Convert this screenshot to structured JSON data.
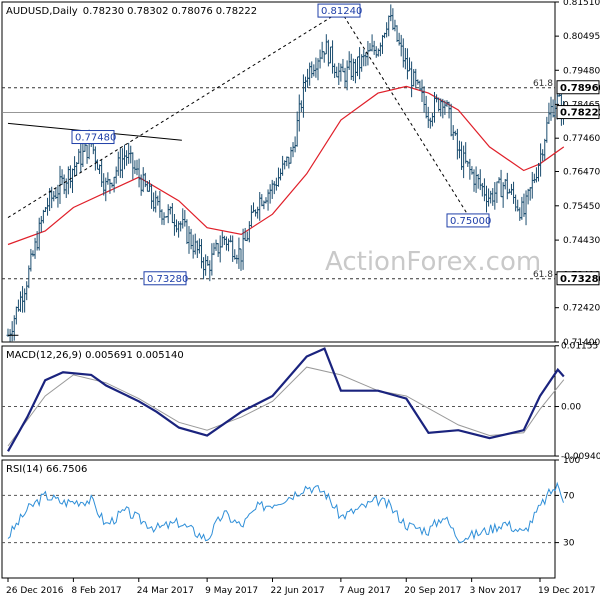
{
  "chart_data": [
    {
      "type": "ohlc",
      "title": "AUDUSD,Daily",
      "ohlc_header": [
        "0.78230",
        "0.78302",
        "0.78076",
        "0.78222"
      ],
      "watermark": "ActionForex.com",
      "ylim": [
        0.714,
        0.8151
      ],
      "y_ticks": [
        "0.81510",
        "0.80495",
        "0.79480",
        "0.78465",
        "0.77460",
        "0.76470",
        "0.75450",
        "0.74430",
        "0.73410",
        "0.72420",
        "0.71400"
      ],
      "x_ticks": [
        "26 Dec 2016",
        "8 Feb 2017",
        "24 Mar 2017",
        "9 May 2017",
        "22 Jun 2017",
        "7 Aug 2017",
        "20 Sep 2017",
        "3 Nov 2017",
        "19 Dec 2017"
      ],
      "current_price": "0.78222",
      "last_price": 0.78222,
      "fib_levels": [
        {
          "label": "61.8",
          "price": "0.78960",
          "value": 0.7896
        },
        {
          "label": "61.8",
          "price": "0.73280",
          "value": 0.7328
        }
      ],
      "annotations": [
        {
          "label": "0.81240",
          "value": 0.8124
        },
        {
          "label": "0.77480",
          "value": 0.7748
        },
        {
          "label": "0.73280",
          "value": 0.7328
        },
        {
          "label": "0.75000",
          "value": 0.75
        }
      ],
      "trend_lines": [
        {
          "from": [
            "26 Dec 2016",
            0.751
          ],
          "to": [
            "7 Aug 2017",
            0.8124
          ]
        },
        {
          "from": [
            "7 Aug 2017",
            0.8124
          ],
          "to": [
            "3 Nov 2017",
            0.75
          ]
        },
        {
          "from": [
            "26 Dec 2016",
            0.779
          ],
          "to": [
            "22 Apr 2017",
            0.774
          ]
        },
        {
          "from": [
            "26 Dec 2016",
            0.716
          ],
          "to": [
            "2 Jan 2017",
            0.716
          ]
        }
      ],
      "key_points": [
        {
          "date": "26 Dec 2016",
          "close": 0.716
        },
        {
          "date": "8 Jan 2017",
          "close": 0.733
        },
        {
          "date": "20 Jan 2017",
          "close": 0.754
        },
        {
          "date": "8 Feb 2017",
          "close": 0.766
        },
        {
          "date": "20 Feb 2017",
          "close": 0.773
        },
        {
          "date": "2 Mar 2017",
          "close": 0.76
        },
        {
          "date": "15 Mar 2017",
          "close": 0.77
        },
        {
          "date": "24 Mar 2017",
          "close": 0.763
        },
        {
          "date": "5 Apr 2017",
          "close": 0.754
        },
        {
          "date": "20 Apr 2017",
          "close": 0.75
        },
        {
          "date": "1 May 2017",
          "close": 0.742
        },
        {
          "date": "9 May 2017",
          "close": 0.736
        },
        {
          "date": "20 May 2017",
          "close": 0.745
        },
        {
          "date": "1 Jun 2017",
          "close": 0.74
        },
        {
          "date": "12 Jun 2017",
          "close": 0.756
        },
        {
          "date": "22 Jun 2017",
          "close": 0.76
        },
        {
          "date": "5 Jul 2017",
          "close": 0.77
        },
        {
          "date": "15 Jul 2017",
          "close": 0.794
        },
        {
          "date": "27 Jul 2017",
          "close": 0.802
        },
        {
          "date": "7 Aug 2017",
          "close": 0.793
        },
        {
          "date": "18 Aug 2017",
          "close": 0.796
        },
        {
          "date": "1 Sep 2017",
          "close": 0.802
        },
        {
          "date": "8 Sep 2017",
          "close": 0.811
        },
        {
          "date": "20 Sep 2017",
          "close": 0.796
        },
        {
          "date": "5 Oct 2017",
          "close": 0.782
        },
        {
          "date": "15 Oct 2017",
          "close": 0.787
        },
        {
          "date": "25 Oct 2017",
          "close": 0.77
        },
        {
          "date": "3 Nov 2017",
          "close": 0.764
        },
        {
          "date": "15 Nov 2017",
          "close": 0.757
        },
        {
          "date": "25 Nov 2017",
          "close": 0.761
        },
        {
          "date": "8 Dec 2017",
          "close": 0.752
        },
        {
          "date": "19 Dec 2017",
          "close": 0.769
        },
        {
          "date": "26 Dec 2017",
          "close": 0.783
        },
        {
          "date": "31 Dec 2017",
          "close": 0.786
        },
        {
          "date": "4 Jan 2018",
          "close": 0.7822
        }
      ],
      "moving_average": [
        {
          "date": "26 Dec 2016",
          "value": 0.743
        },
        {
          "date": "20 Jan 2017",
          "value": 0.747
        },
        {
          "date": "8 Feb 2017",
          "value": 0.754
        },
        {
          "date": "24 Mar 2017",
          "value": 0.763
        },
        {
          "date": "20 Apr 2017",
          "value": 0.756
        },
        {
          "date": "9 May 2017",
          "value": 0.748
        },
        {
          "date": "1 Jun 2017",
          "value": 0.746
        },
        {
          "date": "22 Jun 2017",
          "value": 0.752
        },
        {
          "date": "15 Jul 2017",
          "value": 0.764
        },
        {
          "date": "7 Aug 2017",
          "value": 0.78
        },
        {
          "date": "1 Sep 2017",
          "value": 0.788
        },
        {
          "date": "20 Sep 2017",
          "value": 0.79
        },
        {
          "date": "5 Oct 2017",
          "value": 0.788
        },
        {
          "date": "25 Oct 2017",
          "value": 0.783
        },
        {
          "date": "15 Nov 2017",
          "value": 0.772
        },
        {
          "date": "8 Dec 2017",
          "value": 0.765
        },
        {
          "date": "19 Dec 2017",
          "value": 0.767
        },
        {
          "date": "4 Jan 2018",
          "value": 0.772
        }
      ]
    },
    {
      "type": "line",
      "title": "MACD(12,26,9) 0.005691 0.005140",
      "ylim": [
        -0.0094,
        0.0115
      ],
      "y_ticks": [
        "0.01155",
        "0.00",
        "-0.009408"
      ],
      "series": [
        {
          "values": [
            {
              "date": "26 Dec 2016",
              "value": -0.0085
            },
            {
              "date": "8 Jan 2017",
              "value": -0.002
            },
            {
              "date": "20 Jan 2017",
              "value": 0.005
            },
            {
              "date": "1 Feb 2017",
              "value": 0.0065
            },
            {
              "date": "20 Feb 2017",
              "value": 0.006
            },
            {
              "date": "2 Mar 2017",
              "value": 0.004
            },
            {
              "date": "24 Mar 2017",
              "value": 0.001
            },
            {
              "date": "5 Apr 2017",
              "value": -0.001
            },
            {
              "date": "20 Apr 2017",
              "value": -0.004
            },
            {
              "date": "9 May 2017",
              "value": -0.0055
            },
            {
              "date": "1 Jun 2017",
              "value": -0.001
            },
            {
              "date": "22 Jun 2017",
              "value": 0.002
            },
            {
              "date": "15 Jul 2017",
              "value": 0.0095
            },
            {
              "date": "27 Jul 2017",
              "value": 0.011
            },
            {
              "date": "7 Aug 2017",
              "value": 0.003
            },
            {
              "date": "1 Sep 2017",
              "value": 0.003
            },
            {
              "date": "20 Sep 2017",
              "value": 0.0015
            },
            {
              "date": "5 Oct 2017",
              "value": -0.005
            },
            {
              "date": "25 Oct 2017",
              "value": -0.0045
            },
            {
              "date": "15 Nov 2017",
              "value": -0.006
            },
            {
              "date": "8 Dec 2017",
              "value": -0.0045
            },
            {
              "date": "19 Dec 2017",
              "value": 0.002
            },
            {
              "date": "31 Dec 2017",
              "value": 0.007
            },
            {
              "date": "4 Jan 2018",
              "value": 0.0057
            }
          ]
        },
        {
          "values": [
            {
              "date": "26 Dec 2016",
              "value": -0.0075
            },
            {
              "date": "20 Jan 2017",
              "value": 0.002
            },
            {
              "date": "8 Feb 2017",
              "value": 0.006
            },
            {
              "date": "2 Mar 2017",
              "value": 0.0045
            },
            {
              "date": "24 Mar 2017",
              "value": 0.0015
            },
            {
              "date": "20 Apr 2017",
              "value": -0.003
            },
            {
              "date": "9 May 2017",
              "value": -0.0045
            },
            {
              "date": "1 Jun 2017",
              "value": -0.002
            },
            {
              "date": "22 Jun 2017",
              "value": 0.001
            },
            {
              "date": "15 Jul 2017",
              "value": 0.0075
            },
            {
              "date": "7 Aug 2017",
              "value": 0.006
            },
            {
              "date": "1 Sep 2017",
              "value": 0.003
            },
            {
              "date": "20 Sep 2017",
              "value": 0.002
            },
            {
              "date": "25 Oct 2017",
              "value": -0.0035
            },
            {
              "date": "15 Nov 2017",
              "value": -0.0055
            },
            {
              "date": "8 Dec 2017",
              "value": -0.005
            },
            {
              "date": "19 Dec 2017",
              "value": -0.0005
            },
            {
              "date": "4 Jan 2018",
              "value": 0.0051
            }
          ]
        }
      ]
    },
    {
      "type": "line",
      "title": "RSI(14) 66.7506",
      "ylim": [
        0,
        100
      ],
      "y_ticks": [
        "100",
        "70",
        "30",
        "0"
      ],
      "reference_levels": [
        70,
        30
      ],
      "series": [
        {
          "values": [
            {
              "date": "26 Dec 2016",
              "value": 35
            },
            {
              "date": "8 Jan 2017",
              "value": 58
            },
            {
              "date": "20 Jan 2017",
              "value": 70
            },
            {
              "date": "1 Feb 2017",
              "value": 64
            },
            {
              "date": "20 Feb 2017",
              "value": 66
            },
            {
              "date": "2 Mar 2017",
              "value": 45
            },
            {
              "date": "15 Mar 2017",
              "value": 57
            },
            {
              "date": "24 Mar 2017",
              "value": 50
            },
            {
              "date": "5 Apr 2017",
              "value": 42
            },
            {
              "date": "20 Apr 2017",
              "value": 47
            },
            {
              "date": "9 May 2017",
              "value": 33
            },
            {
              "date": "20 May 2017",
              "value": 55
            },
            {
              "date": "1 Jun 2017",
              "value": 44
            },
            {
              "date": "12 Jun 2017",
              "value": 60
            },
            {
              "date": "22 Jun 2017",
              "value": 63
            },
            {
              "date": "5 Jul 2017",
              "value": 70
            },
            {
              "date": "15 Jul 2017",
              "value": 78
            },
            {
              "date": "27 Jul 2017",
              "value": 73
            },
            {
              "date": "7 Aug 2017",
              "value": 52
            },
            {
              "date": "18 Aug 2017",
              "value": 58
            },
            {
              "date": "1 Sep 2017",
              "value": 66
            },
            {
              "date": "8 Sep 2017",
              "value": 62
            },
            {
              "date": "20 Sep 2017",
              "value": 45
            },
            {
              "date": "5 Oct 2017",
              "value": 40
            },
            {
              "date": "15 Oct 2017",
              "value": 53
            },
            {
              "date": "25 Oct 2017",
              "value": 34
            },
            {
              "date": "3 Nov 2017",
              "value": 36
            },
            {
              "date": "15 Nov 2017",
              "value": 41
            },
            {
              "date": "25 Nov 2017",
              "value": 47
            },
            {
              "date": "8 Dec 2017",
              "value": 38
            },
            {
              "date": "19 Dec 2017",
              "value": 60
            },
            {
              "date": "26 Dec 2017",
              "value": 73
            },
            {
              "date": "31 Dec 2017",
              "value": 78
            },
            {
              "date": "4 Jan 2018",
              "value": 67
            }
          ]
        }
      ]
    }
  ]
}
